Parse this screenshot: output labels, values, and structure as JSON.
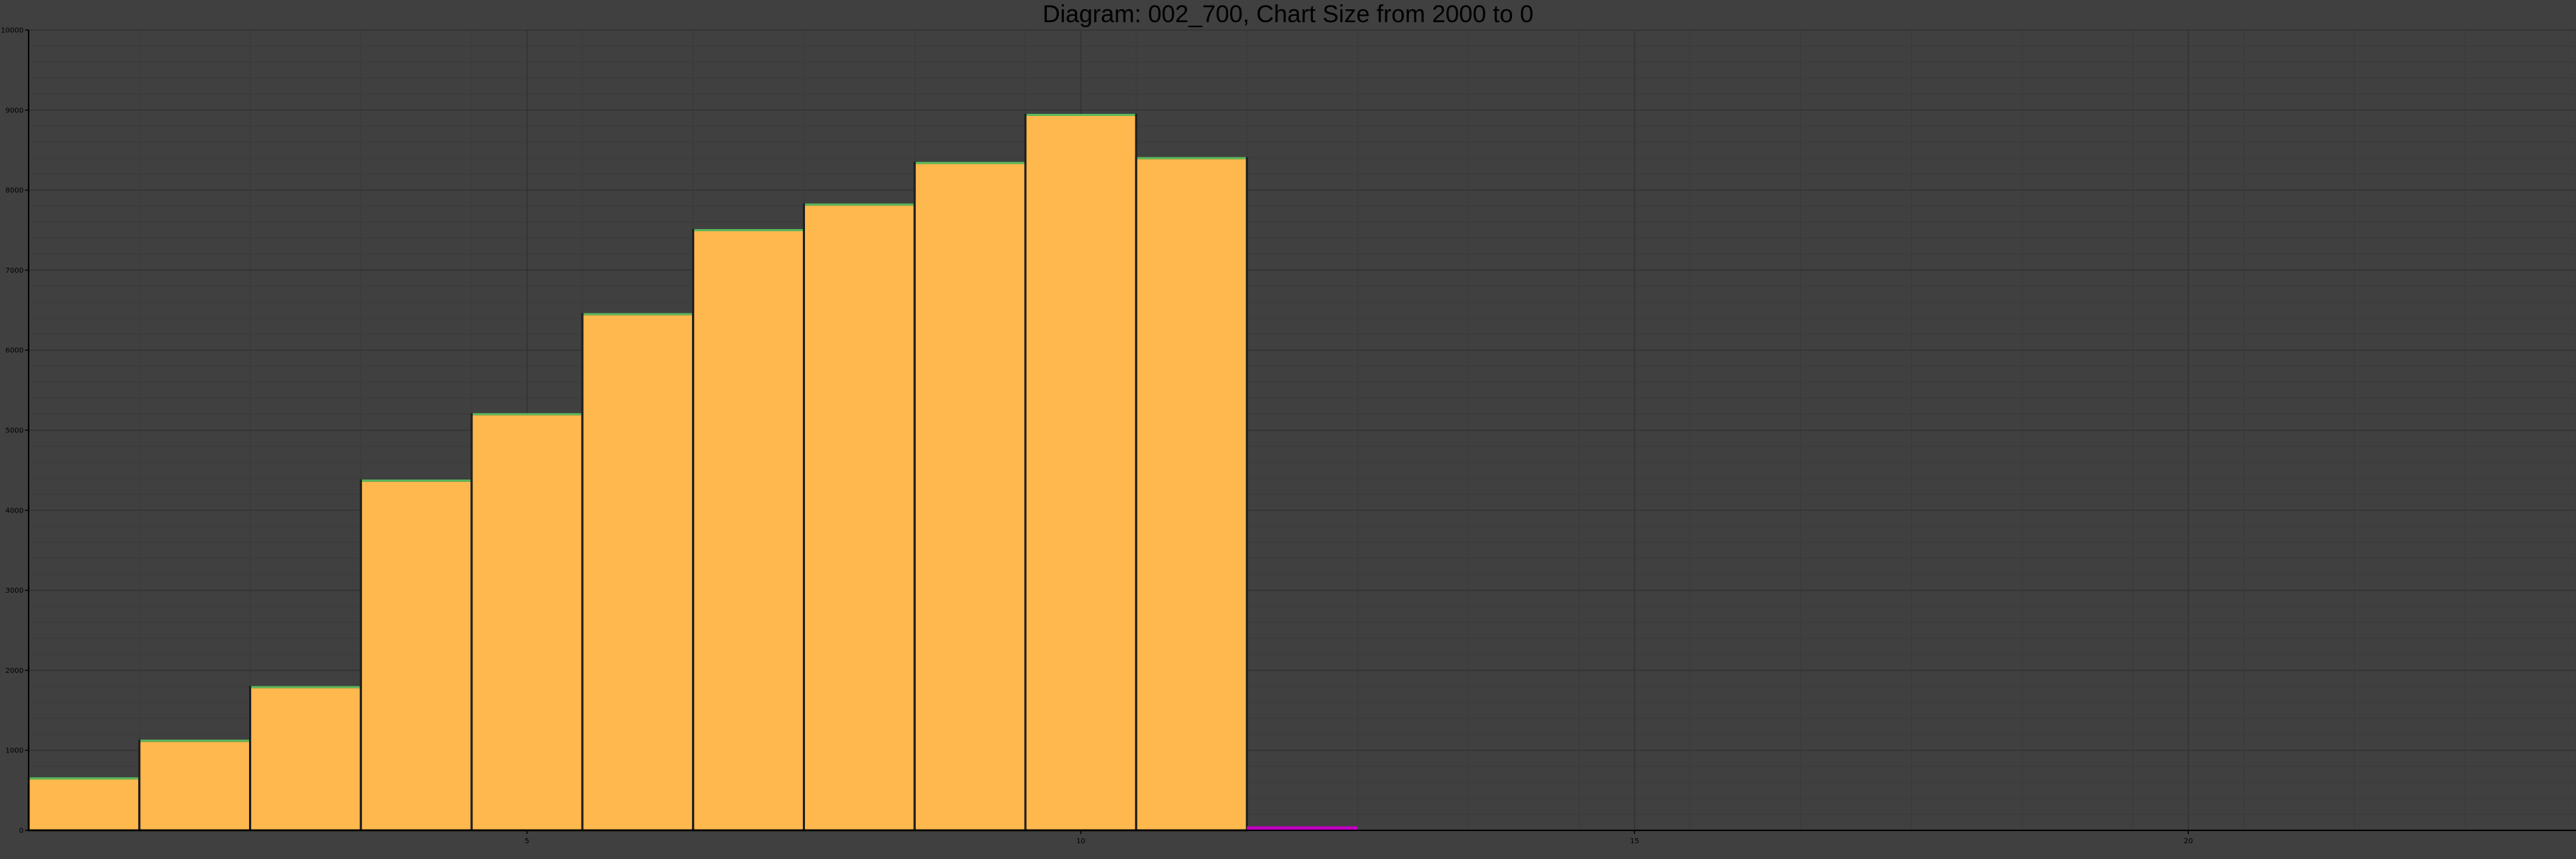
{
  "chart_data": {
    "type": "bar",
    "title": "Diagram: 002_700, Chart Size from 2000 to 0",
    "xlabel": "",
    "ylabel": "",
    "xlim": [
      0,
      23
    ],
    "ylim": [
      0,
      10000
    ],
    "x_ticks": [
      {
        "value": 4.5,
        "label": "5"
      },
      {
        "value": 9.5,
        "label": "10"
      },
      {
        "value": 14.5,
        "label": "15"
      },
      {
        "value": 19.5,
        "label": "20"
      }
    ],
    "y_ticks": [
      {
        "value": 0,
        "label": "0"
      },
      {
        "value": 1000,
        "label": "1000"
      },
      {
        "value": 2000,
        "label": "2000"
      },
      {
        "value": 3000,
        "label": "3000"
      },
      {
        "value": 4000,
        "label": "4000"
      },
      {
        "value": 5000,
        "label": "5000"
      },
      {
        "value": 6000,
        "label": "6000"
      },
      {
        "value": 7000,
        "label": "7000"
      },
      {
        "value": 8000,
        "label": "8000"
      },
      {
        "value": 9000,
        "label": "9000"
      },
      {
        "value": 10000,
        "label": "10000"
      }
    ],
    "grid": true,
    "series": [
      {
        "color": "#ffb84d",
        "edge_color": "#1f1f1f",
        "top_color": "#5cb85c",
        "bars": [
          {
            "x0": 0,
            "x1": 1,
            "value": 650
          },
          {
            "x0": 1,
            "x1": 2,
            "value": 1120
          },
          {
            "x0": 2,
            "x1": 3,
            "value": 1790
          },
          {
            "x0": 3,
            "x1": 4,
            "value": 4370
          },
          {
            "x0": 4,
            "x1": 5,
            "value": 5200
          },
          {
            "x0": 5,
            "x1": 6,
            "value": 6450
          },
          {
            "x0": 6,
            "x1": 7,
            "value": 7500
          },
          {
            "x0": 7,
            "x1": 8,
            "value": 7820
          },
          {
            "x0": 8,
            "x1": 9,
            "value": 8340
          },
          {
            "x0": 9,
            "x1": 10,
            "value": 8940
          },
          {
            "x0": 10,
            "x1": 11,
            "value": 8400
          }
        ]
      },
      {
        "color": "#c000c0",
        "bars": [
          {
            "x0": 11,
            "x1": 12,
            "value": 50
          }
        ]
      }
    ],
    "colors": {
      "background": "#404040",
      "grid_major": "#333333",
      "grid_minor": "#3a3a3a",
      "axis": "#000000"
    }
  }
}
